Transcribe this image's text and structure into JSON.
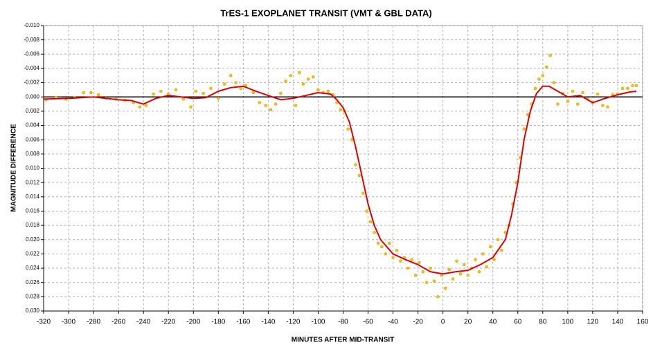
{
  "chart_data": {
    "type": "scatter",
    "title": "TrES-1 EXOPLANET TRANSIT (VMT & GBL DATA)",
    "x_label": "MINUTES AFTER MID-TRANSIT",
    "y_label": "MAGNITUDE DIFFERENCE",
    "xlim": [
      -320,
      160
    ],
    "xticks": [
      -320,
      -300,
      -280,
      -260,
      -240,
      -220,
      -200,
      -180,
      -160,
      -140,
      -120,
      -100,
      -80,
      -60,
      -40,
      -20,
      0,
      20,
      40,
      60,
      80,
      100,
      120,
      140,
      160
    ],
    "ylim": [
      -0.01,
      0.03
    ],
    "y_inverted": true,
    "yticks": [
      {
        "value": -0.01,
        "label": "-0.010"
      },
      {
        "value": -0.008,
        "label": "-0.008"
      },
      {
        "value": -0.006,
        "label": "-0.006"
      },
      {
        "value": -0.004,
        "label": "-0.004"
      },
      {
        "value": -0.002,
        "label": "-0.002"
      },
      {
        "value": 0.0,
        "label": "0.000"
      },
      {
        "value": 0.002,
        "label": "0.002"
      },
      {
        "value": 0.004,
        "label": "0.004"
      },
      {
        "value": 0.006,
        "label": "0.006"
      },
      {
        "value": 0.008,
        "label": "0.008"
      },
      {
        "value": 0.01,
        "label": "0.010"
      },
      {
        "value": 0.012,
        "label": "0.012"
      },
      {
        "value": 0.014,
        "label": "0.014"
      },
      {
        "value": 0.016,
        "label": "0.016"
      },
      {
        "value": 0.018,
        "label": "0.018"
      },
      {
        "value": 0.02,
        "label": "0.020"
      },
      {
        "value": 0.022,
        "label": "0.022"
      },
      {
        "value": 0.024,
        "label": "0.024"
      },
      {
        "value": 0.026,
        "label": "0.026"
      },
      {
        "value": 0.028,
        "label": "0.028"
      },
      {
        "value": 0.03,
        "label": "0.030"
      }
    ],
    "grid": true,
    "hline": 0,
    "series": [
      {
        "type": "scatter",
        "color": "#ffc000",
        "x": [
          -318,
          -310,
          -302,
          -295,
          -288,
          -282,
          -276,
          -270,
          -262,
          -255,
          -248,
          -243,
          -238,
          -232,
          -226,
          -220,
          -214,
          -208,
          -202,
          -198,
          -192,
          -186,
          -180,
          -175,
          -170,
          -166,
          -162,
          -158,
          -152,
          -147,
          -142,
          -138,
          -134,
          -130,
          -126,
          -122,
          -118,
          -115,
          -112,
          -108,
          -104,
          -100,
          -96,
          -92,
          -88,
          -85,
          -82,
          -79,
          -76,
          -73,
          -70,
          -67,
          -64,
          -61,
          -58,
          -55,
          -52,
          -49,
          -46,
          -43,
          -40,
          -37,
          -34,
          -31,
          -28,
          -25,
          -22,
          -19,
          -16,
          -13,
          -10,
          -7,
          -4,
          -1,
          2,
          5,
          8,
          11,
          14,
          17,
          20,
          23,
          26,
          29,
          32,
          35,
          38,
          41,
          44,
          47,
          50,
          53,
          56,
          59,
          62,
          65,
          68,
          71,
          74,
          77,
          80,
          83,
          86,
          89,
          92,
          96,
          100,
          104,
          108,
          112,
          116,
          120,
          124,
          128,
          132,
          136,
          140,
          144,
          148,
          152,
          155
        ],
        "values": [
          0.0004,
          0.0001,
          0.0003,
          0.0001,
          -0.0006,
          -0.0006,
          -0.0003,
          0.0002,
          0.0003,
          0.0005,
          0.0008,
          0.0014,
          0.0012,
          -0.0004,
          -0.0008,
          -0.0004,
          -0.001,
          0.0003,
          0.0014,
          -0.0008,
          -0.0005,
          -0.0012,
          0.0002,
          -0.0018,
          -0.003,
          -0.002,
          -0.0012,
          -0.0016,
          -0.0006,
          0.0008,
          0.0012,
          0.0018,
          0.001,
          -0.0005,
          -0.0022,
          -0.003,
          0.0012,
          -0.0034,
          -0.0018,
          -0.0025,
          -0.0028,
          -0.001,
          -0.0006,
          -0.0008,
          -0.0003,
          0.0008,
          0.0018,
          0.002,
          0.0045,
          0.006,
          0.0095,
          0.011,
          0.0135,
          0.016,
          0.0175,
          0.019,
          0.0205,
          0.021,
          0.022,
          0.0205,
          0.0225,
          0.0215,
          0.023,
          0.0225,
          0.024,
          0.0228,
          0.025,
          0.0232,
          0.0245,
          0.026,
          0.024,
          0.0258,
          0.028,
          0.025,
          0.0268,
          0.0242,
          0.0255,
          0.023,
          0.0248,
          0.0235,
          0.025,
          0.024,
          0.0228,
          0.0245,
          0.022,
          0.0238,
          0.021,
          0.0228,
          0.02,
          0.0215,
          0.019,
          0.018,
          0.015,
          0.012,
          0.0085,
          0.0045,
          0.0025,
          0.001,
          -0.0012,
          -0.0025,
          -0.003,
          -0.0042,
          -0.0058,
          -0.002,
          0.001,
          -0.0005,
          0.0006,
          -0.0008,
          0.001,
          -0.0006,
          0.0003,
          0.0008,
          -0.0004,
          0.0012,
          0.0014,
          -0.0003,
          -0.0004,
          -0.0012,
          -0.0012,
          -0.0016,
          -0.0016
        ]
      },
      {
        "type": "line",
        "color": "#e00000",
        "x": [
          -320,
          -300,
          -280,
          -260,
          -250,
          -240,
          -230,
          -220,
          -210,
          -200,
          -190,
          -180,
          -170,
          -160,
          -150,
          -140,
          -130,
          -120,
          -110,
          -100,
          -90,
          -85,
          -80,
          -75,
          -70,
          -65,
          -60,
          -55,
          -50,
          -40,
          -30,
          -20,
          -10,
          0,
          10,
          20,
          30,
          40,
          50,
          55,
          60,
          65,
          70,
          75,
          80,
          85,
          90,
          100,
          110,
          120,
          130,
          140,
          150,
          155
        ],
        "values": [
          0.0003,
          0.0002,
          0.0,
          0.0004,
          0.0005,
          0.001,
          0.0002,
          -0.0002,
          0.0,
          0.0002,
          0.0001,
          -0.0008,
          -0.0013,
          -0.0015,
          -0.0008,
          -0.0002,
          0.0004,
          0.0002,
          -0.0002,
          -0.0006,
          -0.0004,
          0.0004,
          0.0015,
          0.0035,
          0.007,
          0.011,
          0.015,
          0.018,
          0.02,
          0.022,
          0.0228,
          0.0235,
          0.0245,
          0.0248,
          0.0245,
          0.0243,
          0.0235,
          0.0225,
          0.02,
          0.0165,
          0.012,
          0.006,
          0.002,
          -0.0005,
          -0.0015,
          -0.0015,
          -0.001,
          0.0,
          -0.0002,
          0.0008,
          0.0002,
          -0.0003,
          -0.0007,
          -0.0008
        ]
      }
    ]
  }
}
